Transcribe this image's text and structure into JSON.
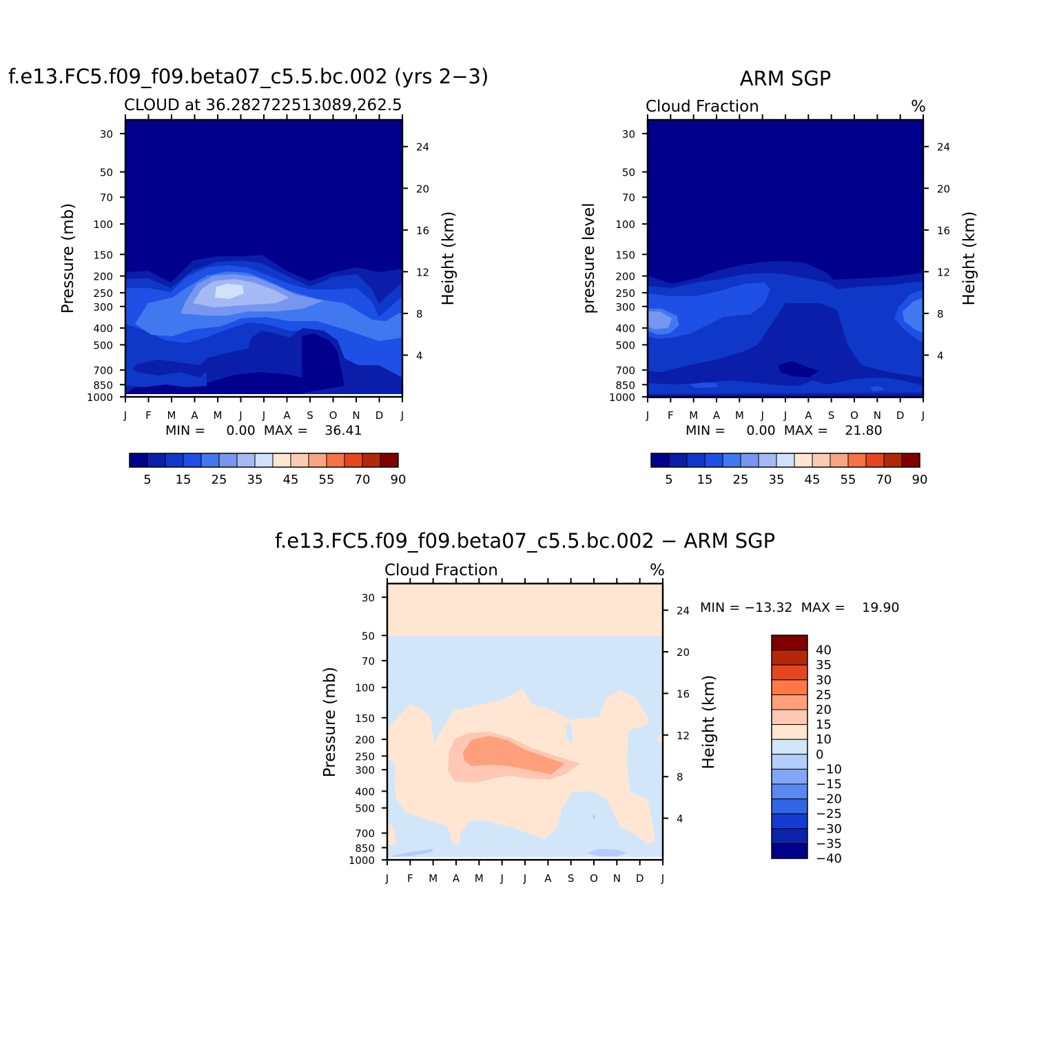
{
  "panel_top_left": {
    "title": "f.e13.FC5.f09_f09.beta07_c5.5.bc.002 (yrs 2−3)",
    "subtitle_left": "CLOUD at 36.28272251308 ",
    "subtitle_full": "CLOUD at 36.282722513089,262.5",
    "subtitle_right": "%",
    "ylabel": "Pressure (mb)",
    "ylabel_right": "Height (km)",
    "minmax": "MIN =     0.00  MAX =    36.41"
  },
  "panel_top_right": {
    "title": "ARM SGP",
    "subtitle_left": "Cloud Fraction",
    "subtitle_right": "%",
    "ylabel": "pressure level",
    "ylabel_right": "Height (km)",
    "minmax": "MIN =     0.00  MAX =    21.80"
  },
  "panel_bottom": {
    "title": "f.e13.FC5.f09_f09.beta07_c5.5.bc.002 − ARM SGP",
    "subtitle_left": "Cloud Fraction",
    "subtitle_right": "%",
    "ylabel": "Pressure (mb)",
    "ylabel_right": "Height (km)",
    "minmax": "MIN = −13.32  MAX =    19.90"
  },
  "colors": {
    "seq_palette": [
      "#00008c",
      "#0a1eaa",
      "#0f37c8",
      "#1e50e6",
      "#4178f0",
      "#7896f0",
      "#a5b9f5",
      "#d2e1fa",
      "#fde6d2",
      "#fccbb4",
      "#f9a582",
      "#f57346",
      "#e6461e",
      "#b4280a",
      "#800000"
    ],
    "div_palette": [
      "#800000",
      "#b4280a",
      "#e6461e",
      "#ff7846",
      "#ffa07a",
      "#ffc8b4",
      "#ffe6d2",
      "#d2e6fa",
      "#b4cdfa",
      "#82a5f5",
      "#5a87f0",
      "#3264e6",
      "#143cd2",
      "#0a23aa",
      "#00008c"
    ]
  },
  "chart_data": [
    {
      "type": "heatmap",
      "title": "f.e13.FC5.f09_f09.beta07_c5.5.bc.002 (yrs 2−3)",
      "x": [
        "J",
        "F",
        "M",
        "A",
        "M",
        "J",
        "J",
        "A",
        "S",
        "O",
        "N",
        "D",
        "J"
      ],
      "y": [
        30,
        50,
        70,
        100,
        150,
        200,
        250,
        300,
        400,
        500,
        700,
        850,
        1000
      ],
      "y_right": [
        24,
        20,
        16,
        12,
        8,
        4
      ],
      "ylabel": "Pressure (mb)",
      "ylabel_right": "Height (km)",
      "min": 0.0,
      "max": 36.41,
      "levels": [
        5,
        15,
        25,
        35,
        45,
        55,
        70,
        90
      ],
      "colorbar_labels": [
        "5",
        "15",
        "25",
        "35",
        "45",
        "55",
        "70",
        "90"
      ]
    },
    {
      "type": "heatmap",
      "title": "ARM SGP",
      "x": [
        "J",
        "F",
        "M",
        "A",
        "M",
        "J",
        "J",
        "A",
        "S",
        "O",
        "N",
        "D",
        "J"
      ],
      "y": [
        30,
        50,
        70,
        100,
        150,
        200,
        250,
        300,
        400,
        500,
        700,
        850,
        1000
      ],
      "y_right": [
        24,
        20,
        16,
        12,
        8,
        4
      ],
      "ylabel": "pressure level",
      "ylabel_right": "Height (km)",
      "min": 0.0,
      "max": 21.8,
      "levels": [
        5,
        15,
        25,
        35,
        45,
        55,
        70,
        90
      ],
      "colorbar_labels": [
        "5",
        "15",
        "25",
        "35",
        "45",
        "55",
        "70",
        "90"
      ]
    },
    {
      "type": "heatmap",
      "title": "f.e13.FC5.f09_f09.beta07_c5.5.bc.002 − ARM SGP",
      "x": [
        "J",
        "F",
        "M",
        "A",
        "M",
        "J",
        "J",
        "A",
        "S",
        "O",
        "N",
        "D",
        "J"
      ],
      "y": [
        30,
        50,
        70,
        100,
        150,
        200,
        250,
        300,
        400,
        500,
        700,
        850,
        1000
      ],
      "y_right": [
        24,
        20,
        16,
        12,
        8,
        4
      ],
      "ylabel": "Pressure (mb)",
      "ylabel_right": "Height (km)",
      "min": -13.32,
      "max": 19.9,
      "colorbar_labels": [
        "40",
        "35",
        "30",
        "25",
        "20",
        "15",
        "10",
        "0",
        "−10",
        "−15",
        "−20",
        "−25",
        "−30",
        "−35",
        "−40"
      ]
    }
  ]
}
